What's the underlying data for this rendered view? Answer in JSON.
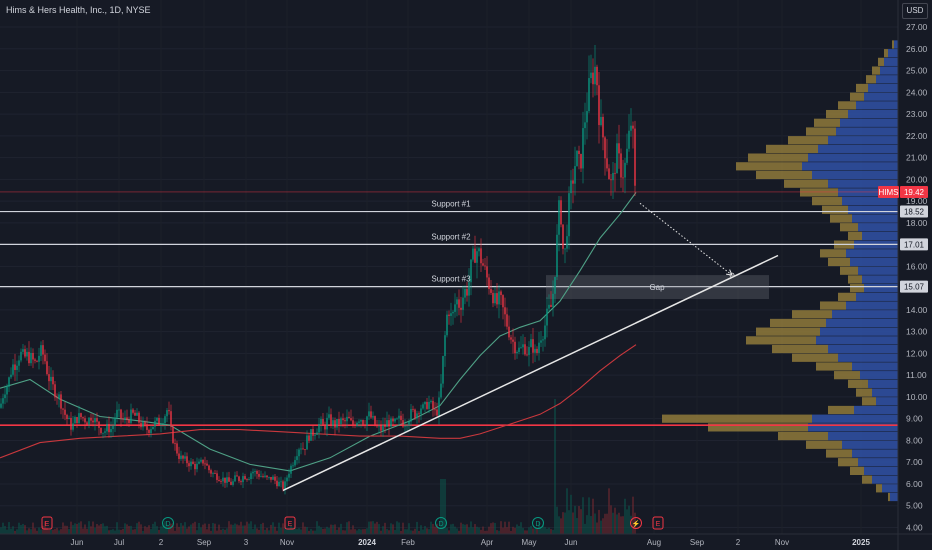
{
  "header": {
    "title": "Hims & Hers Health, Inc., 1D, NYSE",
    "currency": "USD"
  },
  "chart_data": {
    "type": "candlestick",
    "symbol": "HIMS",
    "interval": "1D",
    "exchange": "NYSE",
    "y_axis": {
      "ticks": [
        4,
        5,
        6,
        7,
        8,
        9,
        10,
        11,
        12,
        13,
        14,
        15,
        16,
        17,
        18,
        19,
        20,
        21,
        22,
        23,
        24,
        25,
        26,
        27
      ],
      "ylim": [
        3.7,
        27.6
      ]
    },
    "x_axis": {
      "ticks": [
        {
          "label": "Jun",
          "bold": false
        },
        {
          "label": "Jul",
          "bold": false
        },
        {
          "label": "2",
          "bold": false
        },
        {
          "label": "Sep",
          "bold": false
        },
        {
          "label": "3",
          "bold": false
        },
        {
          "label": "Nov",
          "bold": false
        },
        {
          "label": "2024",
          "bold": true
        },
        {
          "label": "Feb",
          "bold": false
        },
        {
          "label": "Apr",
          "bold": false
        },
        {
          "label": "May",
          "bold": false
        },
        {
          "label": "Jun",
          "bold": false
        },
        {
          "label": "Aug",
          "bold": false
        },
        {
          "label": "Sep",
          "bold": false
        },
        {
          "label": "2",
          "bold": false
        },
        {
          "label": "Nov",
          "bold": false
        },
        {
          "label": "2025",
          "bold": true
        }
      ]
    },
    "price_points": [
      [
        0,
        9.5
      ],
      [
        4,
        10.3
      ],
      [
        8,
        10.6
      ],
      [
        12,
        11.4
      ],
      [
        16,
        11.6
      ],
      [
        20,
        12.0
      ],
      [
        24,
        11.8
      ],
      [
        28,
        11.9
      ],
      [
        32,
        11.7
      ],
      [
        36,
        11.5
      ],
      [
        40,
        12.1
      ],
      [
        44,
        11.9
      ],
      [
        48,
        11.0
      ],
      [
        52,
        10.5
      ],
      [
        56,
        10.2
      ],
      [
        60,
        9.9
      ],
      [
        64,
        9.3
      ],
      [
        68,
        8.9
      ],
      [
        72,
        8.6
      ],
      [
        76,
        9.0
      ],
      [
        80,
        9.1
      ],
      [
        84,
        9.0
      ],
      [
        88,
        8.9
      ],
      [
        92,
        9.2
      ],
      [
        96,
        8.8
      ],
      [
        100,
        8.6
      ],
      [
        104,
        8.4
      ],
      [
        108,
        8.6
      ],
      [
        112,
        8.5
      ],
      [
        116,
        9.3
      ],
      [
        120,
        9.1
      ],
      [
        124,
        8.9
      ],
      [
        128,
        9.0
      ],
      [
        132,
        9.2
      ],
      [
        136,
        9.1
      ],
      [
        140,
        8.8
      ],
      [
        144,
        8.6
      ],
      [
        148,
        8.5
      ],
      [
        152,
        8.7
      ],
      [
        156,
        8.8
      ],
      [
        160,
        8.9
      ],
      [
        164,
        9.1
      ],
      [
        168,
        9.5
      ],
      [
        171,
        8.4
      ],
      [
        176,
        7.6
      ],
      [
        180,
        7.2
      ],
      [
        184,
        7.1
      ],
      [
        188,
        7.0
      ],
      [
        192,
        6.9
      ],
      [
        196,
        6.8
      ],
      [
        200,
        6.9
      ],
      [
        204,
        7.1
      ],
      [
        208,
        6.7
      ],
      [
        212,
        6.5
      ],
      [
        216,
        6.4
      ],
      [
        220,
        6.3
      ],
      [
        224,
        6.2
      ],
      [
        228,
        6.1
      ],
      [
        232,
        6.0
      ],
      [
        236,
        6.3
      ],
      [
        240,
        6.2
      ],
      [
        244,
        6.4
      ],
      [
        248,
        6.3
      ],
      [
        252,
        6.6
      ],
      [
        256,
        6.5
      ],
      [
        260,
        6.4
      ],
      [
        264,
        6.3
      ],
      [
        268,
        6.2
      ],
      [
        272,
        6.3
      ],
      [
        276,
        6.1
      ],
      [
        280,
        6.0
      ],
      [
        284,
        5.8
      ],
      [
        288,
        6.5
      ],
      [
        292,
        6.9
      ],
      [
        296,
        7.4
      ],
      [
        300,
        7.8
      ],
      [
        304,
        7.6
      ],
      [
        308,
        8.2
      ],
      [
        312,
        8.3
      ],
      [
        316,
        8.5
      ],
      [
        320,
        8.8
      ],
      [
        324,
        8.6
      ],
      [
        328,
        9.0
      ],
      [
        332,
        8.8
      ],
      [
        336,
        8.7
      ],
      [
        340,
        8.9
      ],
      [
        344,
        8.8
      ],
      [
        348,
        9.0
      ],
      [
        352,
        8.7
      ],
      [
        356,
        8.9
      ],
      [
        360,
        9.1
      ],
      [
        364,
        8.8
      ],
      [
        368,
        9.2
      ],
      [
        372,
        9.0
      ],
      [
        376,
        8.6
      ],
      [
        380,
        8.5
      ],
      [
        384,
        8.6
      ],
      [
        388,
        8.9
      ],
      [
        392,
        8.7
      ],
      [
        396,
        8.8
      ],
      [
        400,
        9.0
      ],
      [
        404,
        8.8
      ],
      [
        408,
        9.0
      ],
      [
        412,
        9.3
      ],
      [
        416,
        9.2
      ],
      [
        420,
        9.6
      ],
      [
        424,
        9.4
      ],
      [
        428,
        9.8
      ],
      [
        432,
        9.5
      ],
      [
        436,
        9.2
      ],
      [
        440,
        9.9
      ],
      [
        444,
        12.3
      ],
      [
        448,
        14.2
      ],
      [
        452,
        13.5
      ],
      [
        456,
        14.5
      ],
      [
        460,
        14.2
      ],
      [
        464,
        14.8
      ],
      [
        468,
        15.0
      ],
      [
        472,
        16.2
      ],
      [
        476,
        16.8
      ],
      [
        480,
        16.5
      ],
      [
        484,
        15.9
      ],
      [
        488,
        15.3
      ],
      [
        492,
        14.9
      ],
      [
        496,
        14.2
      ],
      [
        500,
        14.5
      ],
      [
        504,
        13.8
      ],
      [
        508,
        13.2
      ],
      [
        512,
        12.6
      ],
      [
        516,
        12.3
      ],
      [
        520,
        12.1
      ],
      [
        524,
        12.4
      ],
      [
        528,
        12.0
      ],
      [
        532,
        12.5
      ],
      [
        536,
        11.8
      ],
      [
        540,
        12.8
      ],
      [
        544,
        13.1
      ],
      [
        548,
        13.9
      ],
      [
        552,
        14.2
      ],
      [
        556,
        16.5
      ],
      [
        560,
        19.2
      ],
      [
        564,
        16.0
      ],
      [
        568,
        18.5
      ],
      [
        572,
        19.8
      ],
      [
        576,
        21.0
      ],
      [
        580,
        20.5
      ],
      [
        584,
        22.5
      ],
      [
        588,
        23.8
      ],
      [
        592,
        24.8
      ],
      [
        596,
        25.2
      ],
      [
        600,
        22.5
      ],
      [
        604,
        21.8
      ],
      [
        608,
        20.5
      ],
      [
        612,
        19.5
      ],
      [
        616,
        21.2
      ],
      [
        620,
        20.6
      ],
      [
        624,
        20.3
      ],
      [
        628,
        21.5
      ],
      [
        632,
        23.0
      ],
      [
        635,
        19.4
      ]
    ],
    "moving_averages": [
      {
        "color": "#4fa186",
        "points": [
          [
            0,
            10.4
          ],
          [
            30,
            10.8
          ],
          [
            60,
            9.9
          ],
          [
            100,
            9.1
          ],
          [
            140,
            8.9
          ],
          [
            170,
            8.7
          ],
          [
            210,
            7.6
          ],
          [
            250,
            6.9
          ],
          [
            290,
            6.6
          ],
          [
            330,
            7.2
          ],
          [
            370,
            8.2
          ],
          [
            410,
            8.9
          ],
          [
            440,
            9.6
          ],
          [
            460,
            10.8
          ],
          [
            480,
            11.9
          ],
          [
            500,
            12.8
          ],
          [
            520,
            13.2
          ],
          [
            540,
            13.5
          ],
          [
            560,
            14.4
          ],
          [
            580,
            15.8
          ],
          [
            600,
            17.3
          ],
          [
            620,
            18.4
          ],
          [
            636,
            19.4
          ]
        ]
      },
      {
        "color": "#c9383d",
        "points": [
          [
            0,
            7.2
          ],
          [
            40,
            7.9
          ],
          [
            80,
            8.1
          ],
          [
            120,
            8.2
          ],
          [
            160,
            8.3
          ],
          [
            200,
            8.5
          ],
          [
            240,
            8.5
          ],
          [
            280,
            8.4
          ],
          [
            320,
            8.3
          ],
          [
            360,
            8.2
          ],
          [
            400,
            8.2
          ],
          [
            440,
            8.1
          ],
          [
            460,
            8.1
          ],
          [
            480,
            8.3
          ],
          [
            500,
            8.6
          ],
          [
            520,
            8.9
          ],
          [
            540,
            9.2
          ],
          [
            560,
            9.7
          ],
          [
            580,
            10.4
          ],
          [
            600,
            11.2
          ],
          [
            620,
            11.9
          ],
          [
            636,
            12.4
          ]
        ]
      }
    ],
    "horizontal_levels": [
      {
        "price": 18.52,
        "color": "#d1d4dc",
        "tag": "18.52"
      },
      {
        "price": 17.01,
        "color": "#d1d4dc",
        "tag": "17.01"
      },
      {
        "price": 15.07,
        "color": "#d1d4dc",
        "tag": "15.07"
      },
      {
        "price": 8.7,
        "color": "#f23645",
        "tag": ""
      },
      {
        "price": 19.42,
        "color": "#f23645",
        "tag": "19.42",
        "symbol_tag": "HIMS"
      }
    ],
    "annotations": [
      {
        "label": "Support #1",
        "price": 18.52
      },
      {
        "label": "Support #2",
        "price": 17.01
      },
      {
        "label": "Support #3",
        "price": 15.07
      },
      {
        "label": "Gap",
        "price_range": [
          14.5,
          15.6
        ]
      }
    ],
    "trendline": {
      "from": [
        283,
        5.7
      ],
      "to": [
        778,
        16.5
      ]
    },
    "projection_arrow": {
      "from": [
        640,
        18.9
      ],
      "to": [
        732,
        15.6
      ]
    },
    "volume_markers": [
      {
        "label": "E",
        "type": "earnings",
        "x": 47
      },
      {
        "label": "E",
        "type": "earnings",
        "x": 290
      },
      {
        "label": "E",
        "type": "earnings",
        "x": 658
      },
      {
        "label": "D",
        "type": "dividend",
        "x": 168
      },
      {
        "label": "D",
        "type": "dividend",
        "x": 441
      },
      {
        "label": "D",
        "type": "dividend",
        "x": 538
      },
      {
        "label": "⚡",
        "type": "split",
        "x": 636
      }
    ],
    "volume_profile": {
      "up_color": "#2f4fa0",
      "down_color": "#8f7a3b",
      "bins": [
        [
          26.2,
          4,
          2
        ],
        [
          25.8,
          10,
          4
        ],
        [
          25.4,
          14,
          6
        ],
        [
          25.0,
          18,
          8
        ],
        [
          24.6,
          22,
          10
        ],
        [
          24.2,
          30,
          12
        ],
        [
          23.8,
          34,
          14
        ],
        [
          23.4,
          42,
          18
        ],
        [
          23.0,
          50,
          22
        ],
        [
          22.6,
          58,
          26
        ],
        [
          22.2,
          62,
          30
        ],
        [
          21.8,
          70,
          40
        ],
        [
          21.4,
          80,
          52
        ],
        [
          21.0,
          90,
          60
        ],
        [
          20.6,
          96,
          66
        ],
        [
          20.2,
          86,
          56
        ],
        [
          19.8,
          70,
          44
        ],
        [
          19.4,
          60,
          38
        ],
        [
          19.0,
          56,
          30
        ],
        [
          18.6,
          50,
          26
        ],
        [
          18.2,
          46,
          22
        ],
        [
          17.8,
          40,
          18
        ],
        [
          17.4,
          36,
          14
        ],
        [
          17.0,
          44,
          20
        ],
        [
          16.6,
          52,
          26
        ],
        [
          16.2,
          48,
          22
        ],
        [
          15.8,
          40,
          18
        ],
        [
          15.4,
          36,
          14
        ],
        [
          15.0,
          34,
          14
        ],
        [
          14.6,
          42,
          18
        ],
        [
          14.2,
          52,
          26
        ],
        [
          13.8,
          66,
          40
        ],
        [
          13.4,
          72,
          56
        ],
        [
          13.0,
          78,
          64
        ],
        [
          12.6,
          82,
          70
        ],
        [
          12.2,
          70,
          56
        ],
        [
          11.8,
          60,
          46
        ],
        [
          11.4,
          46,
          36
        ],
        [
          11.0,
          38,
          26
        ],
        [
          10.6,
          30,
          20
        ],
        [
          10.2,
          26,
          16
        ],
        [
          9.8,
          22,
          14
        ],
        [
          9.4,
          44,
          26
        ],
        [
          9.0,
          86,
          150
        ],
        [
          8.6,
          90,
          100
        ],
        [
          8.2,
          70,
          50
        ],
        [
          7.8,
          56,
          36
        ],
        [
          7.4,
          46,
          26
        ],
        [
          7.0,
          40,
          20
        ],
        [
          6.6,
          34,
          14
        ],
        [
          6.2,
          26,
          10
        ],
        [
          5.8,
          16,
          6
        ],
        [
          5.4,
          8,
          2
        ]
      ]
    }
  }
}
